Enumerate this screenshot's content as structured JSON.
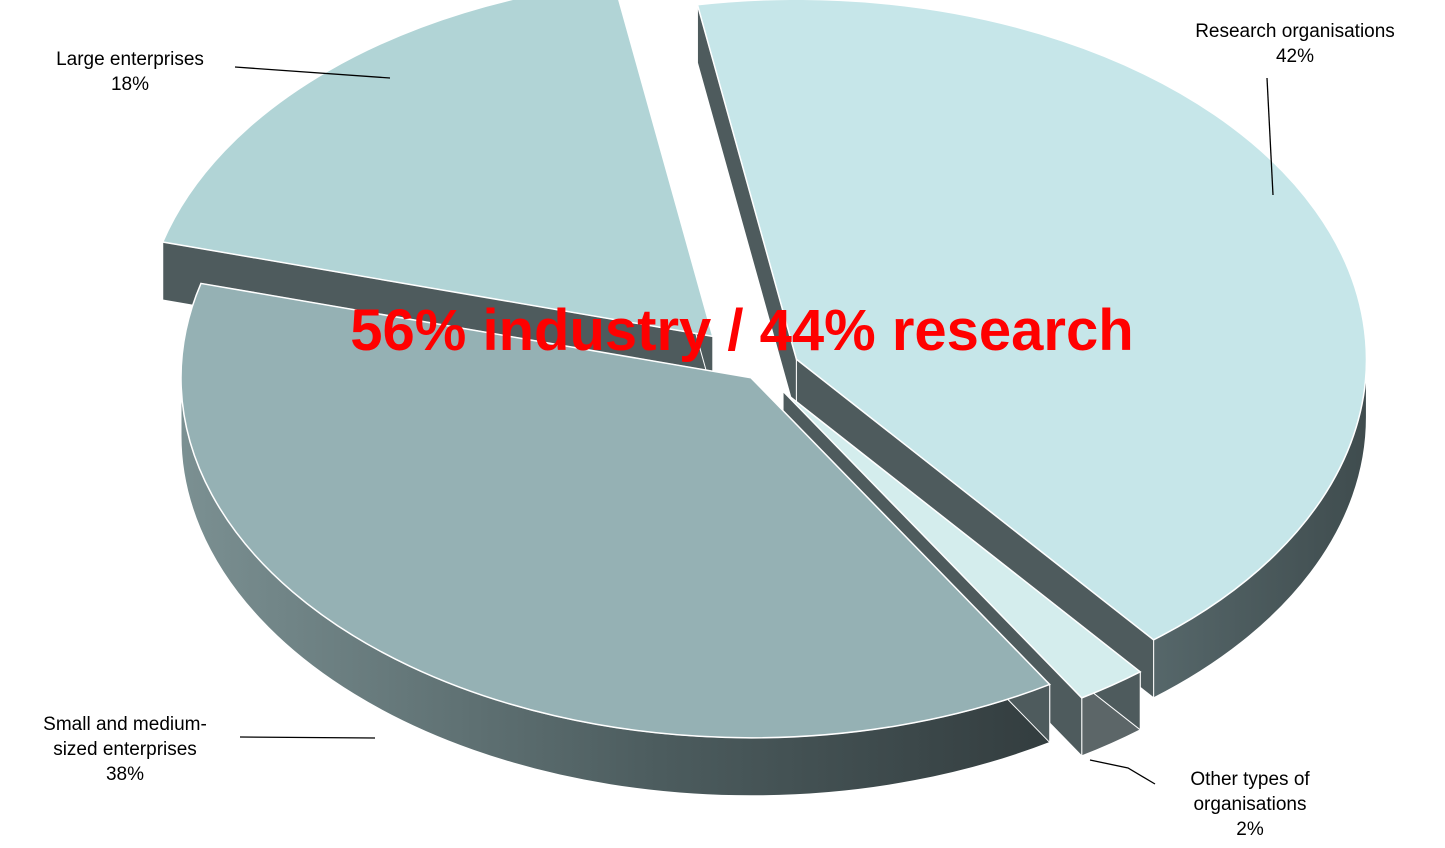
{
  "chart_data": {
    "type": "pie",
    "title": "",
    "annotation": "56% industry / 44% research",
    "slices": [
      {
        "label_lines": [
          "Research organisations",
          "42%"
        ],
        "value": 42,
        "color": "#c6e6e9"
      },
      {
        "label_lines": [
          "Other types of",
          "organisations",
          "2%"
        ],
        "value": 2,
        "color": "#d4eded"
      },
      {
        "label_lines": [
          "Small and medium-",
          "sized enterprises",
          "38%"
        ],
        "value": 38,
        "color": "#95b1b4"
      },
      {
        "label_lines": [
          "Large enterprises",
          "18%"
        ],
        "value": 18,
        "color": "#b1d4d6"
      }
    ]
  }
}
